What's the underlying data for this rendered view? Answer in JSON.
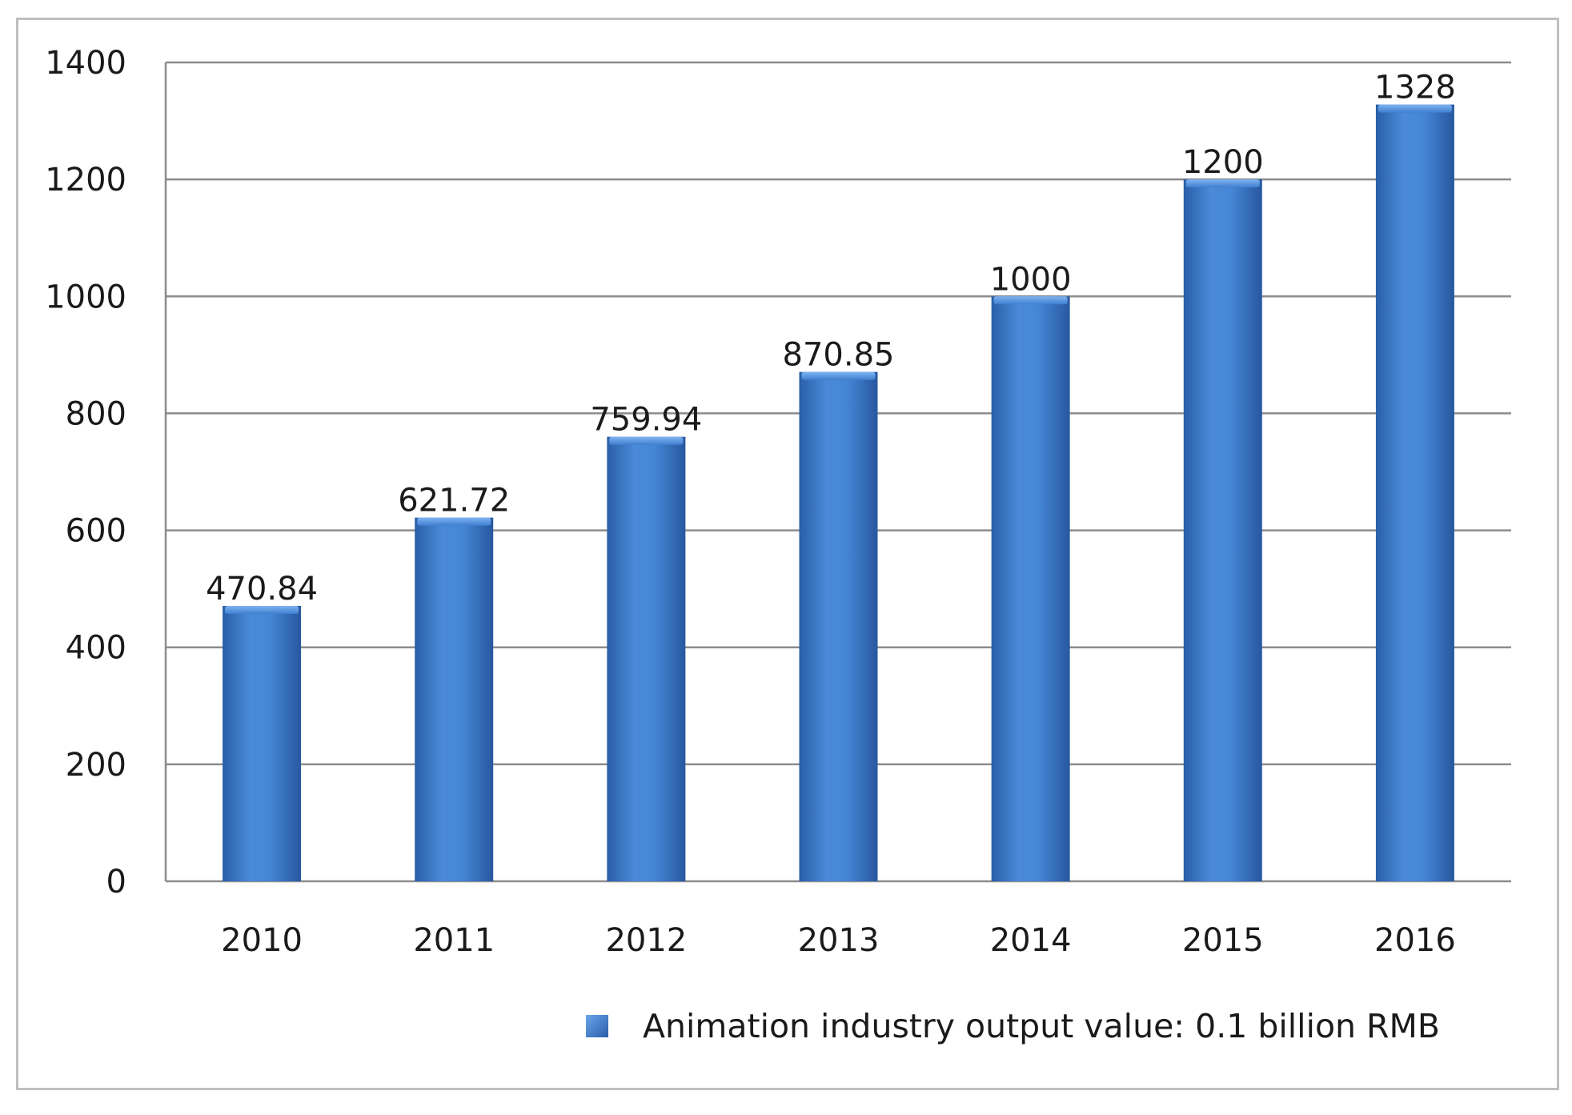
{
  "chart_data": {
    "type": "bar",
    "categories": [
      "2010",
      "2011",
      "2012",
      "2013",
      "2014",
      "2015",
      "2016"
    ],
    "series": [
      {
        "name": "Animation industry output value: 0.1 billion RMB",
        "values": [
          470.84,
          621.72,
          759.94,
          870.85,
          1000,
          1200,
          1328
        ],
        "labels": [
          "470.84",
          "621.72",
          "759.94",
          "870.85",
          "1000",
          "1200",
          "1328"
        ]
      }
    ],
    "ylim": [
      0,
      1400
    ],
    "yticks": [
      "0",
      "200",
      "400",
      "600",
      "800",
      "1000",
      "1200",
      "1400"
    ],
    "grid": true,
    "legend_position": "bottom-right",
    "colors": {
      "bar": "#3f7fd0",
      "bar_dark": "#2a5ea8",
      "bar_light": "#5b9ae6",
      "grid": "#8c8c8c",
      "axis": "#8c8c8c"
    }
  }
}
